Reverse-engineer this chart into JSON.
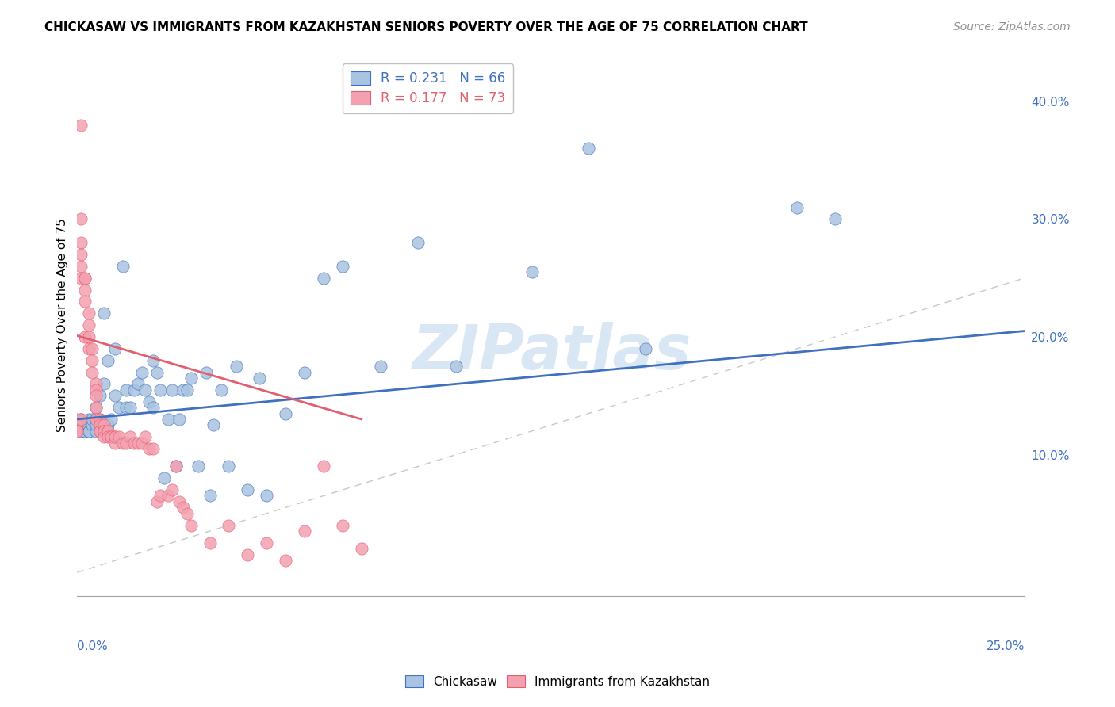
{
  "title": "CHICKASAW VS IMMIGRANTS FROM KAZAKHSTAN SENIORS POVERTY OVER THE AGE OF 75 CORRELATION CHART",
  "source": "Source: ZipAtlas.com",
  "ylabel": "Seniors Poverty Over the Age of 75",
  "yticks": [
    0.0,
    0.1,
    0.2,
    0.3,
    0.4
  ],
  "ytick_labels": [
    "",
    "10.0%",
    "20.0%",
    "30.0%",
    "40.0%"
  ],
  "xlim": [
    0.0,
    0.25
  ],
  "ylim": [
    -0.02,
    0.44
  ],
  "legend_blue_label": "R = 0.231   N = 66",
  "legend_pink_label": "R = 0.177   N = 73",
  "watermark": "ZIPatlas",
  "chickasaw_color": "#a8c4e0",
  "kazakhstan_color": "#f4a0b0",
  "trendline_blue_color": "#4070c0",
  "trendline_pink_color": "#e06070",
  "refline_color": "#c8c8c8",
  "chickasaw_x": [
    0.001,
    0.001,
    0.002,
    0.002,
    0.003,
    0.003,
    0.003,
    0.004,
    0.004,
    0.005,
    0.005,
    0.005,
    0.005,
    0.006,
    0.006,
    0.007,
    0.007,
    0.008,
    0.008,
    0.009,
    0.01,
    0.01,
    0.011,
    0.012,
    0.013,
    0.013,
    0.014,
    0.015,
    0.016,
    0.017,
    0.018,
    0.019,
    0.02,
    0.02,
    0.021,
    0.022,
    0.023,
    0.024,
    0.025,
    0.026,
    0.027,
    0.028,
    0.029,
    0.03,
    0.032,
    0.034,
    0.035,
    0.036,
    0.038,
    0.04,
    0.042,
    0.045,
    0.048,
    0.05,
    0.055,
    0.06,
    0.065,
    0.07,
    0.08,
    0.09,
    0.1,
    0.12,
    0.135,
    0.15,
    0.19,
    0.2
  ],
  "chickasaw_y": [
    0.13,
    0.12,
    0.12,
    0.125,
    0.12,
    0.13,
    0.12,
    0.125,
    0.13,
    0.13,
    0.12,
    0.125,
    0.14,
    0.13,
    0.15,
    0.22,
    0.16,
    0.18,
    0.125,
    0.13,
    0.19,
    0.15,
    0.14,
    0.26,
    0.14,
    0.155,
    0.14,
    0.155,
    0.16,
    0.17,
    0.155,
    0.145,
    0.18,
    0.14,
    0.17,
    0.155,
    0.08,
    0.13,
    0.155,
    0.09,
    0.13,
    0.155,
    0.155,
    0.165,
    0.09,
    0.17,
    0.065,
    0.125,
    0.155,
    0.09,
    0.175,
    0.07,
    0.165,
    0.065,
    0.135,
    0.17,
    0.25,
    0.26,
    0.175,
    0.28,
    0.175,
    0.255,
    0.36,
    0.19,
    0.31,
    0.3
  ],
  "kazakhstan_x": [
    0.0,
    0.0,
    0.0,
    0.0,
    0.0,
    0.001,
    0.001,
    0.001,
    0.001,
    0.001,
    0.001,
    0.001,
    0.002,
    0.002,
    0.002,
    0.002,
    0.002,
    0.003,
    0.003,
    0.003,
    0.003,
    0.004,
    0.004,
    0.004,
    0.005,
    0.005,
    0.005,
    0.005,
    0.005,
    0.006,
    0.006,
    0.006,
    0.006,
    0.007,
    0.007,
    0.007,
    0.007,
    0.008,
    0.008,
    0.008,
    0.009,
    0.009,
    0.01,
    0.01,
    0.01,
    0.011,
    0.012,
    0.013,
    0.014,
    0.015,
    0.016,
    0.017,
    0.018,
    0.019,
    0.02,
    0.021,
    0.022,
    0.024,
    0.025,
    0.026,
    0.027,
    0.028,
    0.029,
    0.03,
    0.035,
    0.04,
    0.045,
    0.05,
    0.055,
    0.06,
    0.065,
    0.07,
    0.075
  ],
  "kazakhstan_y": [
    0.13,
    0.125,
    0.125,
    0.12,
    0.12,
    0.38,
    0.3,
    0.28,
    0.27,
    0.26,
    0.25,
    0.13,
    0.25,
    0.25,
    0.24,
    0.23,
    0.2,
    0.22,
    0.21,
    0.2,
    0.19,
    0.19,
    0.18,
    0.17,
    0.16,
    0.155,
    0.15,
    0.14,
    0.13,
    0.13,
    0.125,
    0.12,
    0.12,
    0.125,
    0.12,
    0.12,
    0.115,
    0.12,
    0.12,
    0.115,
    0.115,
    0.115,
    0.115,
    0.11,
    0.115,
    0.115,
    0.11,
    0.11,
    0.115,
    0.11,
    0.11,
    0.11,
    0.115,
    0.105,
    0.105,
    0.06,
    0.065,
    0.065,
    0.07,
    0.09,
    0.06,
    0.055,
    0.05,
    0.04,
    0.025,
    0.04,
    0.015,
    0.025,
    0.01,
    0.035,
    0.09,
    0.04,
    0.02
  ]
}
